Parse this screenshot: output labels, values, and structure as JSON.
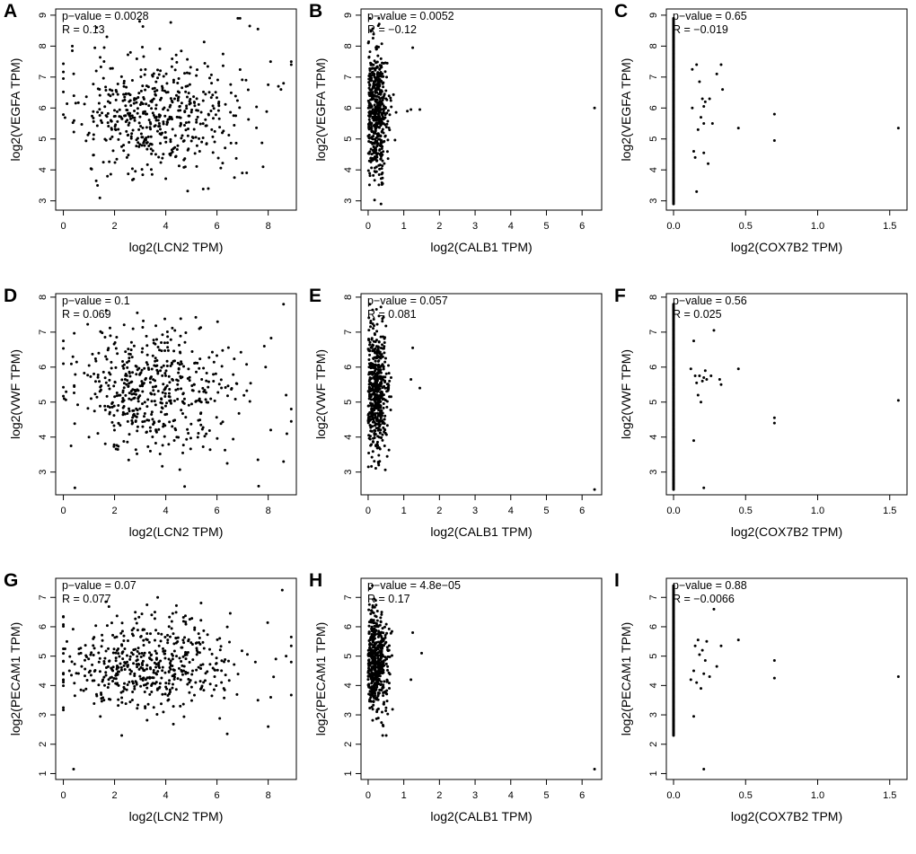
{
  "chart_data": [
    {
      "id": "A",
      "type": "scatter",
      "label": "A",
      "xlabel": "log2(LCN2 TPM)",
      "ylabel": "log2(VEGFA TPM)",
      "pvalue_text": "p−value = 0.0028",
      "r_text": "R = 0.13",
      "xlim": [
        -0.3,
        9.1
      ],
      "ylim": [
        2.7,
        9.2
      ],
      "xticks": [
        0,
        2,
        4,
        6,
        8
      ],
      "xtick_labels": [
        "0",
        "2",
        "4",
        "6",
        "8"
      ],
      "yticks": [
        3,
        4,
        5,
        6,
        7,
        8,
        9
      ],
      "ytick_labels": [
        "3",
        "4",
        "5",
        "6",
        "7",
        "8",
        "9"
      ],
      "dist": {
        "kind": "spread",
        "n": 520,
        "seed": 11,
        "xmean": 3.6,
        "xsd": 1.55,
        "xmin": 0,
        "xmax": 8.9,
        "ymean": 5.8,
        "ysd": 0.95,
        "ymin": 2.9,
        "ymax": 8.9
      },
      "extra": [
        [
          0,
          6.95
        ],
        [
          0.35,
          8.0
        ],
        [
          0.35,
          7.85
        ],
        [
          1.3,
          8.6
        ],
        [
          1.7,
          8.3
        ],
        [
          6.9,
          8.9
        ],
        [
          7.6,
          8.55
        ],
        [
          8.6,
          6.8
        ],
        [
          8.9,
          7.5
        ],
        [
          8.9,
          7.4
        ],
        [
          7.8,
          4.1
        ],
        [
          8.0,
          6.75
        ],
        [
          8.4,
          6.7
        ],
        [
          8.5,
          6.6
        ]
      ]
    },
    {
      "id": "B",
      "type": "scatter",
      "label": "B",
      "xlabel": "log2(CALB1 TPM)",
      "ylabel": "log2(VEGFA TPM)",
      "pvalue_text": "p−value = 0.0052",
      "r_text": "R = −0.12",
      "xlim": [
        -0.2,
        6.55
      ],
      "ylim": [
        2.7,
        9.2
      ],
      "xticks": [
        0,
        1,
        2,
        3,
        4,
        5,
        6
      ],
      "xtick_labels": [
        "0",
        "1",
        "2",
        "3",
        "4",
        "5",
        "6"
      ],
      "yticks": [
        3,
        4,
        5,
        6,
        7,
        8,
        9
      ],
      "ytick_labels": [
        "3",
        "4",
        "5",
        "6",
        "7",
        "8",
        "9"
      ],
      "dist": {
        "kind": "column",
        "n": 520,
        "seed": 22,
        "xmode": 0.22,
        "xsd": 0.17,
        "xmin": 0,
        "xmax": 1.3,
        "ymean": 5.9,
        "ysd": 1.0,
        "ymin": 2.9,
        "ymax": 8.9
      },
      "extra": [
        [
          6.35,
          6.0
        ],
        [
          1.2,
          5.95
        ],
        [
          1.45,
          5.95
        ],
        [
          1.1,
          5.9
        ],
        [
          0.05,
          8.9
        ],
        [
          1.25,
          7.95
        ]
      ]
    },
    {
      "id": "C",
      "type": "scatter",
      "label": "C",
      "xlabel": "log2(COX7B2 TPM)",
      "ylabel": "log2(VEGFA TPM)",
      "pvalue_text": "p−value = 0.65",
      "r_text": "R = −0.019",
      "xlim": [
        -0.05,
        1.62
      ],
      "ylim": [
        2.7,
        9.2
      ],
      "xticks": [
        0,
        0.5,
        1,
        1.5
      ],
      "xtick_labels": [
        "0.0",
        "0.5",
        "1.0",
        "1.5"
      ],
      "yticks": [
        3,
        4,
        5,
        6,
        7,
        8,
        9
      ],
      "ytick_labels": [
        "3",
        "4",
        "5",
        "6",
        "7",
        "8",
        "9"
      ],
      "dist": {
        "kind": "zerocol",
        "n": 180,
        "seed": 33,
        "ymin": 2.9,
        "ymax": 8.9
      },
      "extra": [
        [
          0.13,
          7.25
        ],
        [
          0.13,
          6.0
        ],
        [
          0.14,
          4.6
        ],
        [
          0.15,
          4.4
        ],
        [
          0.16,
          7.4
        ],
        [
          0.17,
          5.3
        ],
        [
          0.18,
          6.85
        ],
        [
          0.19,
          5.7
        ],
        [
          0.2,
          6.3
        ],
        [
          0.21,
          5.5
        ],
        [
          0.21,
          4.55
        ],
        [
          0.21,
          6.05
        ],
        [
          0.22,
          6.2
        ],
        [
          0.24,
          4.2
        ],
        [
          0.25,
          6.3
        ],
        [
          0.27,
          5.5
        ],
        [
          0.3,
          7.1
        ],
        [
          0.33,
          7.4
        ],
        [
          0.34,
          6.6
        ],
        [
          0.45,
          5.35
        ],
        [
          0.7,
          5.8
        ],
        [
          0.7,
          4.95
        ],
        [
          1.56,
          5.35
        ],
        [
          0.16,
          3.3
        ]
      ]
    },
    {
      "id": "D",
      "type": "scatter",
      "label": "D",
      "xlabel": "log2(LCN2 TPM)",
      "ylabel": "log2(VWF TPM)",
      "pvalue_text": "p−value = 0.1",
      "r_text": "R = 0.069",
      "xlim": [
        -0.3,
        9.1
      ],
      "ylim": [
        2.35,
        8.1
      ],
      "xticks": [
        0,
        2,
        4,
        6,
        8
      ],
      "xtick_labels": [
        "0",
        "2",
        "4",
        "6",
        "8"
      ],
      "yticks": [
        3,
        4,
        5,
        6,
        7,
        8
      ],
      "ytick_labels": [
        "3",
        "4",
        "5",
        "6",
        "7",
        "8"
      ],
      "dist": {
        "kind": "spread",
        "n": 520,
        "seed": 44,
        "xmean": 3.5,
        "xsd": 1.6,
        "xmin": 0,
        "xmax": 8.9,
        "ymean": 5.3,
        "ysd": 0.85,
        "ymin": 2.5,
        "ymax": 7.8
      },
      "extra": [
        [
          0.0,
          6.75
        ],
        [
          0.3,
          3.75
        ],
        [
          0.45,
          2.55
        ],
        [
          8.6,
          7.8
        ],
        [
          8.7,
          5.2
        ],
        [
          8.9,
          4.45
        ],
        [
          8.9,
          4.8
        ],
        [
          7.9,
          6.0
        ],
        [
          8.1,
          4.2
        ],
        [
          8.6,
          3.3
        ],
        [
          7.6,
          3.35
        ],
        [
          6.4,
          3.25
        ]
      ]
    },
    {
      "id": "E",
      "type": "scatter",
      "label": "E",
      "xlabel": "log2(CALB1 TPM)",
      "ylabel": "log2(VWF TPM)",
      "pvalue_text": "p−value = 0.057",
      "r_text": "R = 0.081",
      "xlim": [
        -0.2,
        6.55
      ],
      "ylim": [
        2.35,
        8.1
      ],
      "xticks": [
        0,
        1,
        2,
        3,
        4,
        5,
        6
      ],
      "xtick_labels": [
        "0",
        "1",
        "2",
        "3",
        "4",
        "5",
        "6"
      ],
      "yticks": [
        3,
        4,
        5,
        6,
        7,
        8
      ],
      "ytick_labels": [
        "3",
        "4",
        "5",
        "6",
        "7",
        "8"
      ],
      "dist": {
        "kind": "column",
        "n": 520,
        "seed": 55,
        "xmode": 0.22,
        "xsd": 0.17,
        "xmin": 0,
        "xmax": 1.3,
        "ymean": 5.3,
        "ysd": 0.9,
        "ymin": 2.6,
        "ymax": 7.8
      },
      "extra": [
        [
          6.35,
          2.5
        ],
        [
          1.25,
          6.55
        ],
        [
          1.45,
          5.4
        ],
        [
          1.2,
          5.65
        ],
        [
          0.05,
          7.8
        ]
      ]
    },
    {
      "id": "F",
      "type": "scatter",
      "label": "F",
      "xlabel": "log2(COX7B2 TPM)",
      "ylabel": "log2(VWF TPM)",
      "pvalue_text": "p−value = 0.56",
      "r_text": "R = 0.025",
      "xlim": [
        -0.05,
        1.62
      ],
      "ylim": [
        2.35,
        8.1
      ],
      "xticks": [
        0,
        0.5,
        1,
        1.5
      ],
      "xtick_labels": [
        "0.0",
        "0.5",
        "1.0",
        "1.5"
      ],
      "yticks": [
        3,
        4,
        5,
        6,
        7,
        8
      ],
      "ytick_labels": [
        "3",
        "4",
        "5",
        "6",
        "7",
        "8"
      ],
      "dist": {
        "kind": "zerocol",
        "n": 180,
        "seed": 66,
        "ymin": 2.5,
        "ymax": 7.8
      },
      "extra": [
        [
          0.12,
          5.95
        ],
        [
          0.14,
          6.75
        ],
        [
          0.15,
          5.75
        ],
        [
          0.16,
          5.55
        ],
        [
          0.17,
          5.2
        ],
        [
          0.18,
          5.75
        ],
        [
          0.19,
          5.0
        ],
        [
          0.2,
          5.6
        ],
        [
          0.21,
          5.7
        ],
        [
          0.22,
          5.9
        ],
        [
          0.23,
          5.65
        ],
        [
          0.26,
          5.75
        ],
        [
          0.28,
          7.05
        ],
        [
          0.32,
          5.65
        ],
        [
          0.33,
          5.5
        ],
        [
          0.45,
          5.95
        ],
        [
          0.7,
          4.55
        ],
        [
          0.7,
          4.4
        ],
        [
          1.56,
          5.05
        ],
        [
          0.14,
          3.9
        ],
        [
          0.21,
          2.55
        ]
      ]
    },
    {
      "id": "G",
      "type": "scatter",
      "label": "G",
      "xlabel": "log2(LCN2 TPM)",
      "ylabel": "log2(PECAM1 TPM)",
      "pvalue_text": "p−value = 0.07",
      "r_text": "R = 0.077",
      "xlim": [
        -0.3,
        9.1
      ],
      "ylim": [
        0.8,
        7.65
      ],
      "xticks": [
        0,
        2,
        4,
        6,
        8
      ],
      "xtick_labels": [
        "0",
        "2",
        "4",
        "6",
        "8"
      ],
      "yticks": [
        1,
        2,
        3,
        4,
        5,
        6,
        7
      ],
      "ytick_labels": [
        "1",
        "2",
        "3",
        "4",
        "5",
        "6",
        "7"
      ],
      "dist": {
        "kind": "spread",
        "n": 520,
        "seed": 77,
        "xmean": 3.4,
        "xsd": 1.6,
        "xmin": 0,
        "xmax": 8.9,
        "ymean": 4.7,
        "ysd": 0.85,
        "ymin": 2.3,
        "ymax": 7.0
      },
      "extra": [
        [
          0.0,
          6.35
        ],
        [
          0.4,
          1.15
        ],
        [
          0.45,
          3.65
        ],
        [
          8.55,
          7.25
        ],
        [
          8.9,
          5.65
        ],
        [
          8.9,
          5.35
        ],
        [
          8.7,
          5.0
        ],
        [
          8.0,
          2.6
        ],
        [
          8.1,
          3.6
        ],
        [
          7.6,
          3.5
        ],
        [
          7.5,
          4.8
        ],
        [
          6.4,
          2.35
        ],
        [
          8.3,
          4.9
        ]
      ]
    },
    {
      "id": "H",
      "type": "scatter",
      "label": "H",
      "xlabel": "log2(CALB1 TPM)",
      "ylabel": "log2(PECAM1 TPM)",
      "pvalue_text": "p−value = 4.8e−05",
      "r_text": "R = 0.17",
      "xlim": [
        -0.2,
        6.55
      ],
      "ylim": [
        0.8,
        7.65
      ],
      "xticks": [
        0,
        1,
        2,
        3,
        4,
        5,
        6
      ],
      "xtick_labels": [
        "0",
        "1",
        "2",
        "3",
        "4",
        "5",
        "6"
      ],
      "yticks": [
        1,
        2,
        3,
        4,
        5,
        6,
        7
      ],
      "ytick_labels": [
        "1",
        "2",
        "3",
        "4",
        "5",
        "6",
        "7"
      ],
      "dist": {
        "kind": "column",
        "n": 520,
        "seed": 88,
        "xmode": 0.22,
        "xsd": 0.17,
        "xmin": 0,
        "xmax": 1.3,
        "ymean": 4.8,
        "ysd": 0.85,
        "ymin": 2.3,
        "ymax": 7.4
      },
      "extra": [
        [
          6.35,
          1.15
        ],
        [
          1.25,
          5.8
        ],
        [
          1.5,
          5.1
        ],
        [
          1.2,
          4.2
        ],
        [
          0.05,
          7.3
        ]
      ]
    },
    {
      "id": "I",
      "type": "scatter",
      "label": "I",
      "xlabel": "log2(COX7B2 TPM)",
      "ylabel": "log2(PECAM1 TPM)",
      "pvalue_text": "p−value = 0.88",
      "r_text": "R = −0.0066",
      "xlim": [
        -0.05,
        1.62
      ],
      "ylim": [
        0.8,
        7.65
      ],
      "xticks": [
        0,
        0.5,
        1,
        1.5
      ],
      "xtick_labels": [
        "0.0",
        "0.5",
        "1.0",
        "1.5"
      ],
      "yticks": [
        1,
        2,
        3,
        4,
        5,
        6,
        7
      ],
      "ytick_labels": [
        "1",
        "2",
        "3",
        "4",
        "5",
        "6",
        "7"
      ],
      "dist": {
        "kind": "zerocol",
        "n": 180,
        "seed": 99,
        "ymin": 2.3,
        "ymax": 7.4
      },
      "extra": [
        [
          0.12,
          4.2
        ],
        [
          0.14,
          4.5
        ],
        [
          0.15,
          5.35
        ],
        [
          0.16,
          4.1
        ],
        [
          0.17,
          5.55
        ],
        [
          0.18,
          5.05
        ],
        [
          0.19,
          3.9
        ],
        [
          0.2,
          5.2
        ],
        [
          0.21,
          4.4
        ],
        [
          0.22,
          4.85
        ],
        [
          0.23,
          5.5
        ],
        [
          0.25,
          4.3
        ],
        [
          0.28,
          6.6
        ],
        [
          0.3,
          4.65
        ],
        [
          0.33,
          5.35
        ],
        [
          0.45,
          5.55
        ],
        [
          0.7,
          4.85
        ],
        [
          0.7,
          4.25
        ],
        [
          1.56,
          4.3
        ],
        [
          0.14,
          2.95
        ],
        [
          0.21,
          1.15
        ]
      ]
    }
  ]
}
